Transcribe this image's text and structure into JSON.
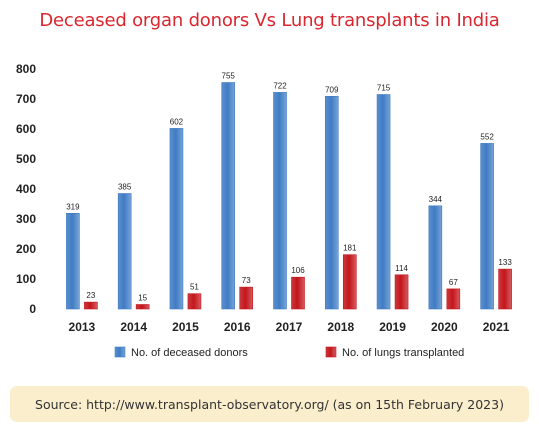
{
  "title": "Deceased organ donors Vs Lung transplants in India",
  "source": "Source: http://www.transplant-observatory.org/ (as on 15th February 2023)",
  "colors": {
    "title": "#d9262f",
    "donors": "#3f7cc4",
    "lungs": "#c3161c",
    "source_bg": "#fbeecd"
  },
  "chart_data": {
    "type": "bar",
    "categories": [
      "2013",
      "2014",
      "2015",
      "2016",
      "2017",
      "2018",
      "2019",
      "2020",
      "2021"
    ],
    "series": [
      {
        "name": "No. of deceased donors",
        "values": [
          319,
          385,
          602,
          755,
          722,
          709,
          715,
          344,
          552
        ]
      },
      {
        "name": "No. of lungs transplanted",
        "values": [
          23,
          15,
          51,
          73,
          106,
          181,
          114,
          67,
          133
        ]
      }
    ],
    "title": "",
    "xlabel": "",
    "ylabel": "",
    "ylim": [
      0,
      800
    ],
    "yticks": [
      0,
      100,
      200,
      300,
      400,
      500,
      600,
      700,
      800
    ],
    "grid": false,
    "legend": "bottom"
  }
}
